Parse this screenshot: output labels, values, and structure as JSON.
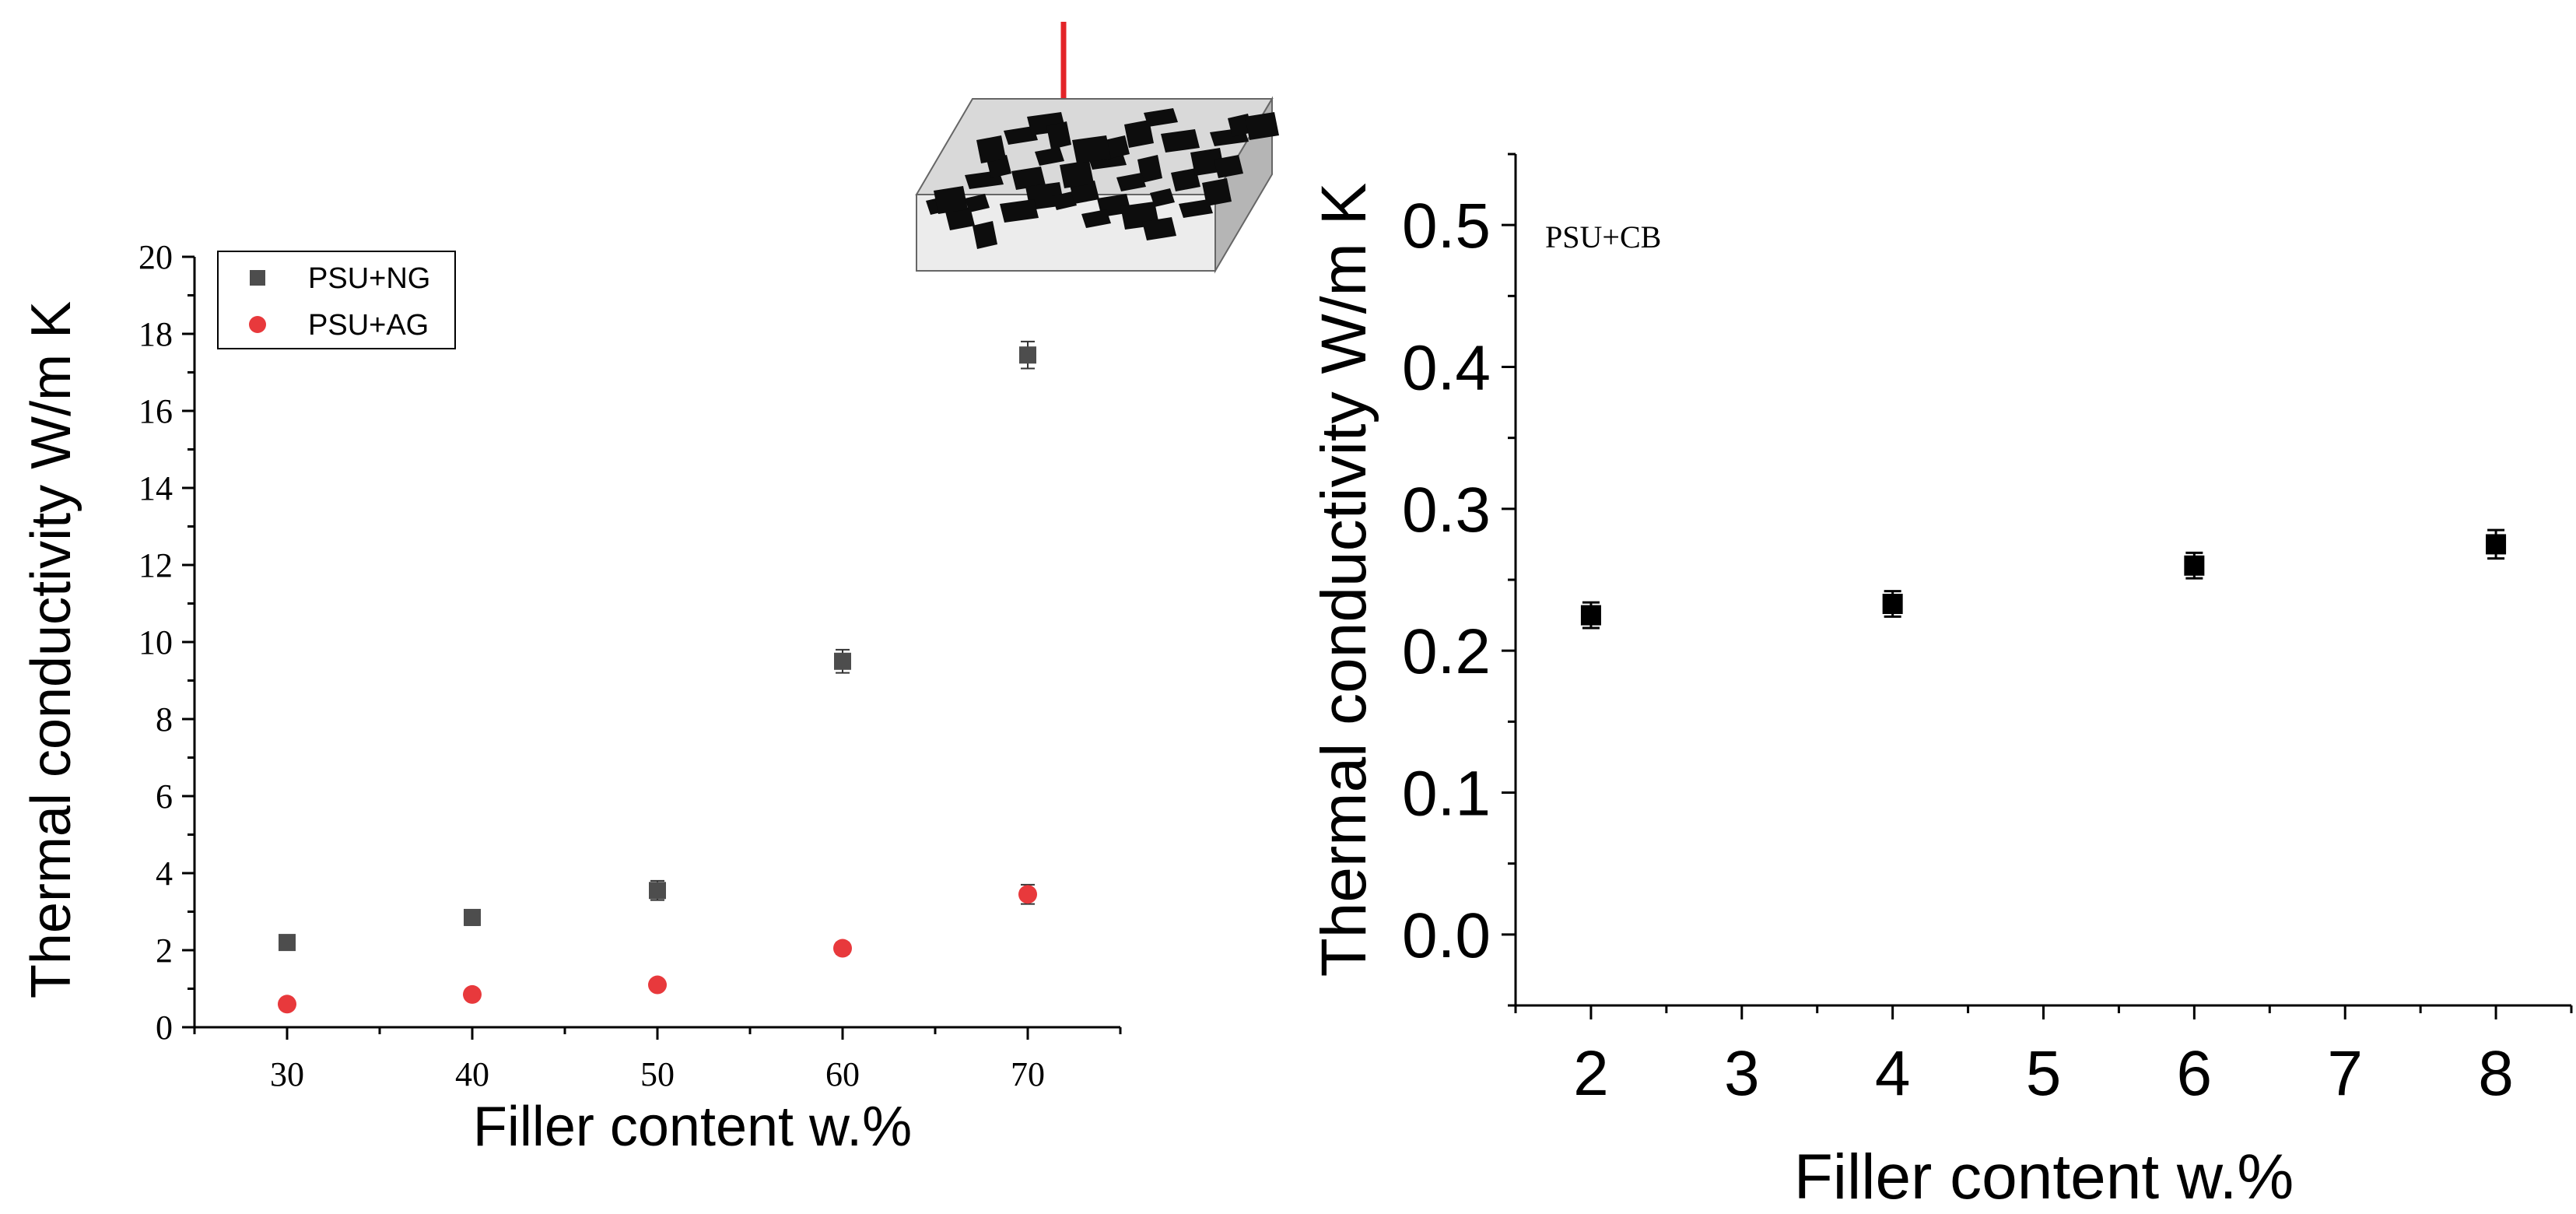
{
  "chart_data": [
    {
      "type": "scatter",
      "xlabel": "Filler content w.%",
      "ylabel": "Thermal conductivity W/m K",
      "xlim": [
        25,
        75
      ],
      "ylim": [
        0,
        20
      ],
      "xticks": [
        "30",
        "40",
        "50",
        "60",
        "70"
      ],
      "yticks": [
        "0",
        "2",
        "4",
        "6",
        "8",
        "10",
        "12",
        "14",
        "16",
        "18",
        "20"
      ],
      "legend_position": "top-left",
      "grid": false,
      "series": [
        {
          "name": "PSU+NG",
          "marker": "square",
          "color": "#4d4d4d",
          "points": [
            {
              "x": 30,
              "y": 2.2,
              "err": 0.1
            },
            {
              "x": 40,
              "y": 2.85,
              "err": 0.2
            },
            {
              "x": 50,
              "y": 3.55,
              "err": 0.25
            },
            {
              "x": 60,
              "y": 9.5,
              "err": 0.3
            },
            {
              "x": 70,
              "y": 17.45,
              "err": 0.35
            }
          ]
        },
        {
          "name": "PSU+AG",
          "marker": "circle",
          "color": "#e8393c",
          "points": [
            {
              "x": 30,
              "y": 0.6,
              "err": 0.1
            },
            {
              "x": 40,
              "y": 0.85,
              "err": 0.1
            },
            {
              "x": 50,
              "y": 1.1,
              "err": 0.12
            },
            {
              "x": 60,
              "y": 2.05,
              "err": 0.15
            },
            {
              "x": 70,
              "y": 3.45,
              "err": 0.25
            }
          ]
        }
      ],
      "inset_illustration": "filler-particles-block-with-red-arrow"
    },
    {
      "type": "scatter",
      "annotation": "PSU+CB",
      "xlabel": "Filler content w.%",
      "ylabel": "Thermal conductivity W/m K",
      "xlim": [
        1.5,
        8.5
      ],
      "ylim": [
        -0.05,
        0.55
      ],
      "xticks": [
        "2",
        "3",
        "4",
        "5",
        "6",
        "7",
        "8"
      ],
      "yticks": [
        "0.0",
        "0.1",
        "0.2",
        "0.3",
        "0.4",
        "0.5"
      ],
      "grid": false,
      "series": [
        {
          "marker": "square",
          "color": "#000000",
          "points": [
            {
              "x": 2,
              "y": 0.225,
              "err": 0.009
            },
            {
              "x": 4,
              "y": 0.233,
              "err": 0.009
            },
            {
              "x": 6,
              "y": 0.26,
              "err": 0.009
            },
            {
              "x": 8,
              "y": 0.275,
              "err": 0.01
            }
          ]
        }
      ]
    }
  ]
}
